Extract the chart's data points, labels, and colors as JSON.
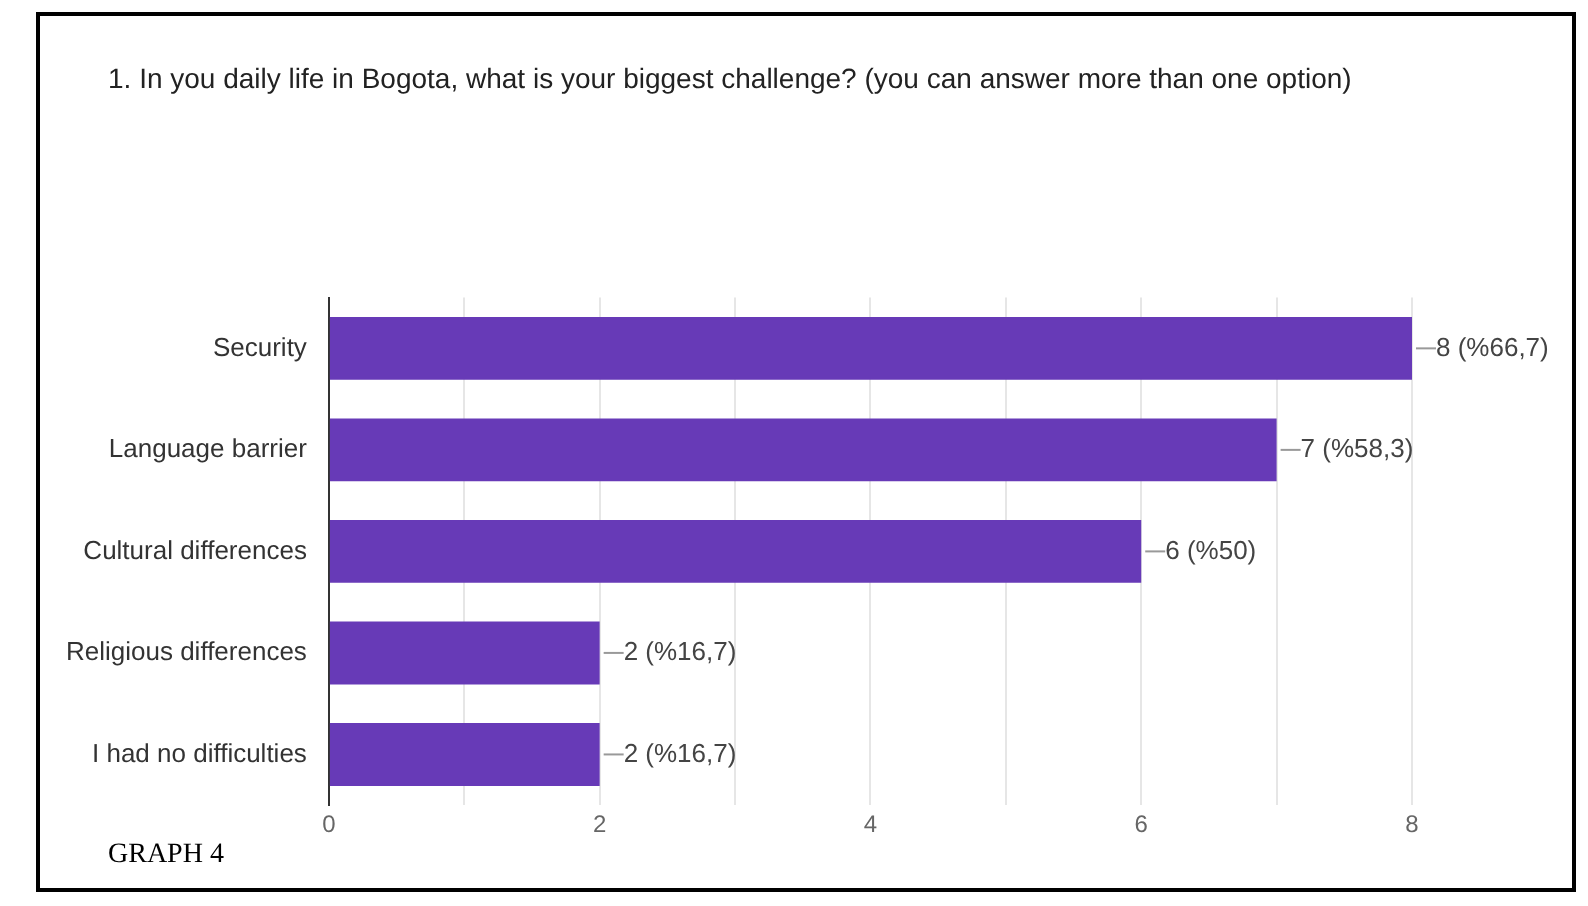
{
  "chart_data": {
    "type": "bar",
    "orientation": "horizontal",
    "title": "1. In you daily life in Bogota, what is your biggest challenge? (you can answer more than one option)",
    "categories": [
      "Security",
      "Language barrier",
      "Cultural differences",
      "Religious differences",
      "I had no difficulties"
    ],
    "values": [
      8,
      7,
      6,
      2,
      2
    ],
    "value_labels": [
      "8 (%66,7)",
      "7 (%58,3)",
      "6 (%50)",
      "2 (%16,7)",
      "2 (%16,7)"
    ],
    "color": "#673ab7",
    "xlim": [
      0,
      8
    ],
    "xticks": [
      0,
      {
        "value": 1,
        "label": null
      },
      2,
      {
        "value": 3,
        "label": null
      },
      4,
      {
        "value": 5,
        "label": null
      },
      6,
      {
        "value": 7,
        "label": null
      },
      8
    ],
    "grid": "x",
    "legend": false,
    "annotations": [
      "GRAPH 4"
    ]
  }
}
